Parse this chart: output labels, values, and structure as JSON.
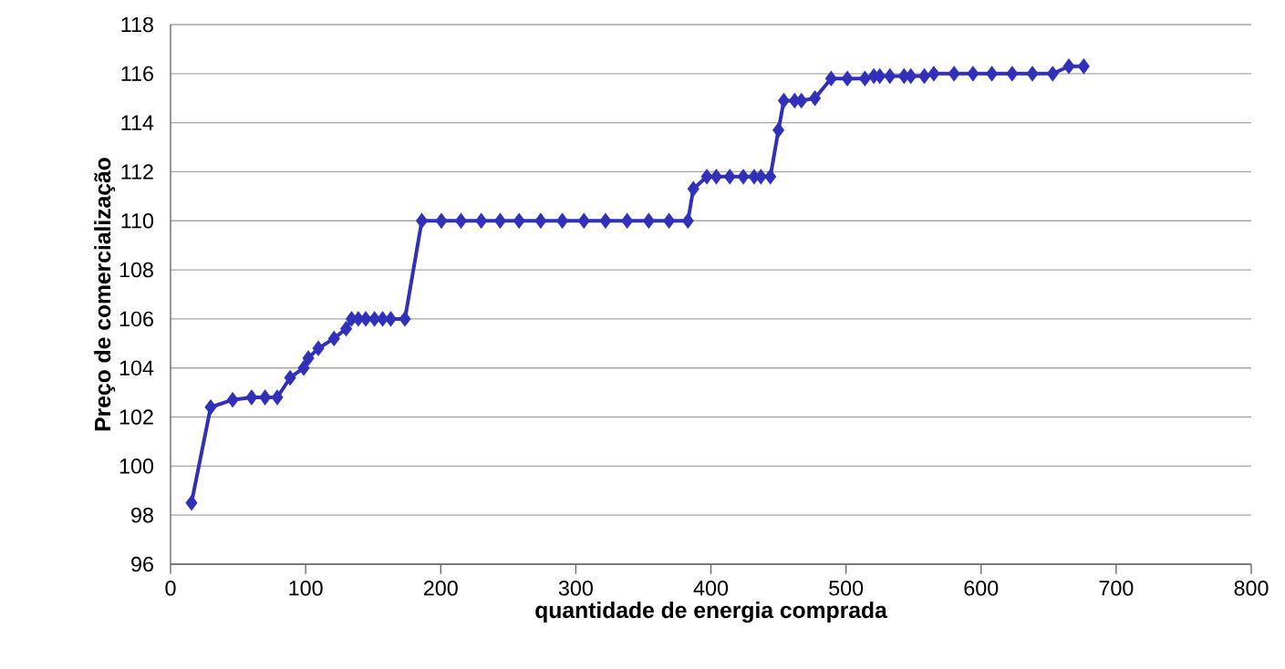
{
  "chart_data": {
    "type": "line",
    "xlabel": "quantidade de energia comprada",
    "ylabel": "Preço de comercialização",
    "xlim": [
      0,
      800
    ],
    "xticks": [
      0,
      100,
      200,
      300,
      400,
      500,
      600,
      700,
      800
    ],
    "ylim": [
      96,
      118
    ],
    "yticks": [
      96,
      98,
      100,
      102,
      104,
      106,
      108,
      110,
      112,
      114,
      116,
      118
    ],
    "grid": "y",
    "marker": "diamond",
    "line_style": "solid",
    "series": [
      {
        "color": "#3030B8",
        "x": [
          15.5,
          29.7,
          46,
          60,
          70,
          79,
          88.5,
          98.6,
          102,
          109.4,
          121,
          130,
          134,
          139,
          144.5,
          151,
          157,
          163,
          173.5,
          186,
          200.5,
          215,
          230,
          244,
          258,
          274,
          290,
          306,
          322,
          338,
          354,
          369,
          383,
          387,
          397,
          404,
          414,
          424,
          432,
          437,
          444,
          450,
          454,
          462,
          467,
          477,
          489,
          501,
          514,
          520.6,
          525,
          532.5,
          543,
          548,
          558,
          565,
          580,
          594,
          608,
          623,
          638,
          653,
          665,
          676
        ],
        "values": [
          98.5,
          102.4,
          102.7,
          102.8,
          102.8,
          102.8,
          103.6,
          104.0,
          104.4,
          104.8,
          105.2,
          105.6,
          106,
          106,
          106,
          106,
          106,
          106,
          106,
          110,
          110,
          110,
          110,
          110,
          110,
          110,
          110,
          110,
          110,
          110,
          110,
          110,
          110,
          111.3,
          111.8,
          111.8,
          111.8,
          111.8,
          111.8,
          111.8,
          111.8,
          113.7,
          114.9,
          114.9,
          114.9,
          115.0,
          115.8,
          115.8,
          115.8,
          115.9,
          115.9,
          115.9,
          115.9,
          115.9,
          115.9,
          116,
          116,
          116,
          116,
          116,
          116,
          116,
          116.3,
          116.3
        ]
      }
    ]
  }
}
